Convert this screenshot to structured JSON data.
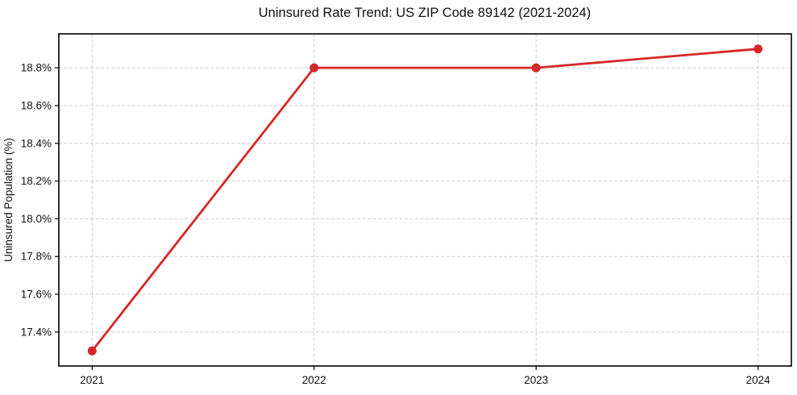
{
  "chart_data": {
    "type": "line",
    "title": "Uninsured Rate Trend: US ZIP Code 89142 (2021-2024)",
    "xlabel": "",
    "ylabel": "Uninsured Population (%)",
    "x": [
      2021,
      2022,
      2023,
      2024
    ],
    "x_tick_labels": [
      "2021",
      "2022",
      "2023",
      "2024"
    ],
    "values": [
      17.3,
      18.8,
      18.8,
      18.9
    ],
    "y_ticks": [
      17.4,
      17.6,
      17.8,
      18.0,
      18.2,
      18.4,
      18.6,
      18.8
    ],
    "y_tick_labels": [
      "17.4%",
      "17.6%",
      "17.8%",
      "18.0%",
      "18.2%",
      "18.4%",
      "18.6%",
      "18.8%"
    ],
    "xlim": [
      2020.85,
      2024.15
    ],
    "ylim": [
      17.22,
      18.98
    ],
    "grid": true,
    "grid_style": "dashed",
    "legend_position": "none",
    "colors": {
      "line": "#d62728",
      "marker": "#d62728",
      "grid": "#cccccc",
      "spine": "#000000",
      "text": "#111111",
      "background": "#ffffff"
    }
  }
}
